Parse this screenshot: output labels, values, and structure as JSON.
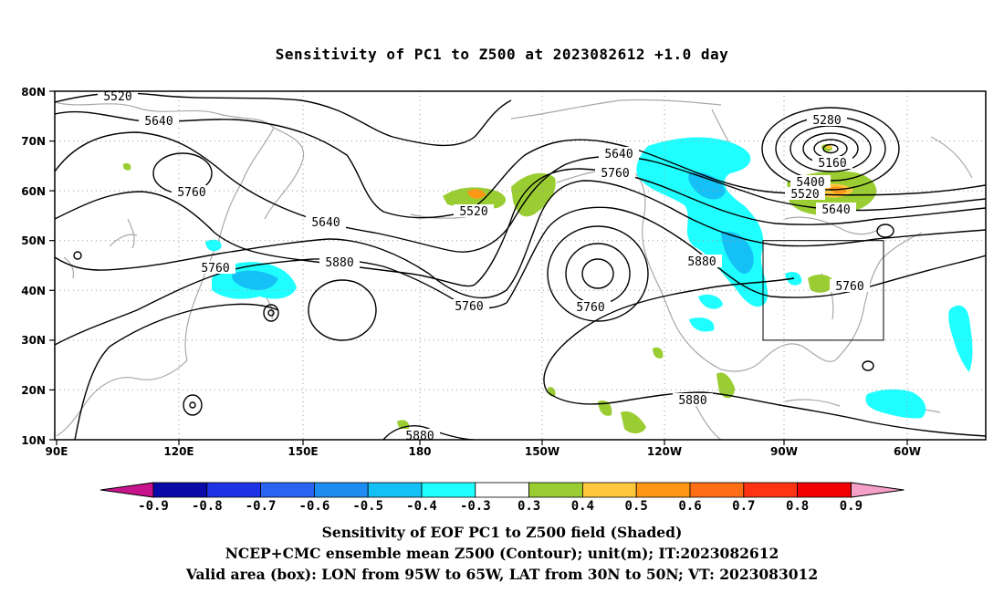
{
  "title": "Sensitivity of PC1 to Z500 at 2023082612 +1.0 day",
  "lat_labels": [
    "80N",
    "70N",
    "60N",
    "50N",
    "40N",
    "30N",
    "20N",
    "10N"
  ],
  "lon_labels": [
    "90E",
    "120E",
    "150E",
    "180",
    "150W",
    "120W",
    "90W",
    "60W"
  ],
  "contour_labels": [
    "5520",
    "5640",
    "5760",
    "5640",
    "5520",
    "5640",
    "5760",
    "5280",
    "5160",
    "5400",
    "5520",
    "5640",
    "5760",
    "5880",
    "5880",
    "5760",
    "5760",
    "5880",
    "5880",
    "5760"
  ],
  "colorbar": {
    "labels": [
      "-0.9",
      "-0.8",
      "-0.7",
      "-0.6",
      "-0.5",
      "-0.4",
      "-0.3",
      "0.3",
      "0.4",
      "0.5",
      "0.6",
      "0.7",
      "0.8",
      "0.9"
    ],
    "colors": [
      "#0a0aa8",
      "#1e32e6",
      "#2864f0",
      "#1e8cf0",
      "#14c0f5",
      "#20ffff",
      "#ffffff",
      "#9acd32",
      "#ffc83c",
      "#ff9614",
      "#ff6e14",
      "#ff3214",
      "#f00000"
    ],
    "low_end_color": "#c8148c",
    "high_end_color": "#f5a0c8"
  },
  "valid_box": {
    "lon_from": "95W",
    "lon_to": "65W",
    "lat_from": "30N",
    "lat_to": "50N"
  },
  "captions": [
    "Sensitivity of EOF PC1 to Z500 field (Shaded)",
    "NCEP+CMC ensemble mean Z500 (Contour); unit(m); IT:2023082612",
    "Valid area (box): LON from 95W to 65W, LAT from 30N to 50N; VT: 2023083012"
  ]
}
